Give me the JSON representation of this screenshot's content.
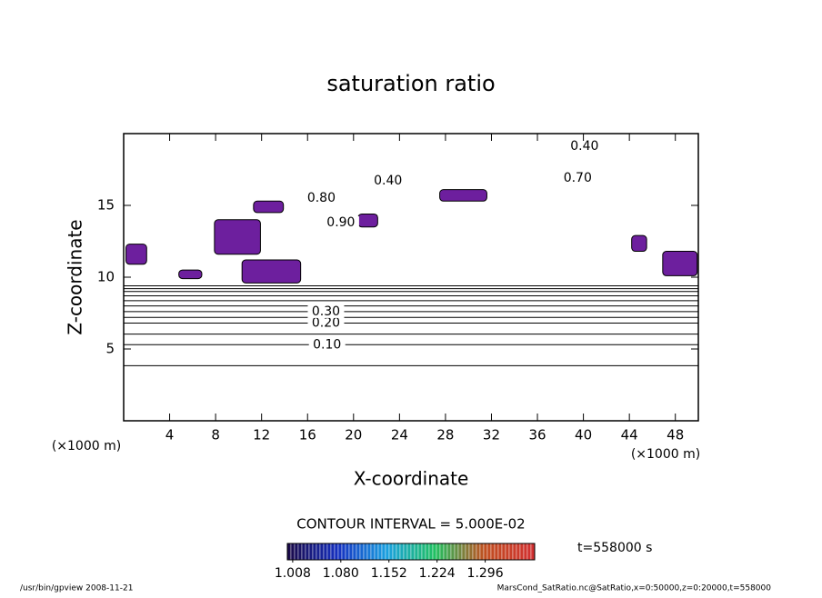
{
  "chart_data": {
    "type": "contour",
    "title": "saturation ratio",
    "x_label": "X-coordinate",
    "y_label": "Z-coordinate",
    "x_unit": "(×1000 m)",
    "y_unit": "(×1000 m)",
    "xlim": [
      0,
      50
    ],
    "xticks": [
      4,
      8,
      12,
      16,
      20,
      24,
      28,
      32,
      36,
      40,
      44,
      48
    ],
    "ylim": [
      0,
      20
    ],
    "yticks": [
      5,
      10,
      15
    ],
    "contour_interval_text": "CONTOUR INTERVAL = 5.000E-02",
    "time_text": "t=558000 s",
    "contour_lines": [
      {
        "level": 0.05,
        "z": 3.84
      },
      {
        "level": 0.1,
        "z": 5.3
      },
      {
        "level": 0.15,
        "z": 6.04
      },
      {
        "level": 0.2,
        "z": 6.8
      },
      {
        "level": 0.25,
        "z": 7.2
      },
      {
        "level": 0.3,
        "z": 7.6
      },
      {
        "level": 0.35,
        "z": 8.0
      },
      {
        "level": 0.4,
        "z": 8.36
      },
      {
        "level": 0.45,
        "z": 8.7
      },
      {
        "level": 0.5,
        "z": 9.0
      },
      {
        "level": 0.55,
        "z": 9.2
      },
      {
        "level": 0.6,
        "z": 9.4
      }
    ],
    "contour_labels": [
      {
        "label": "0.10",
        "x": 17.7,
        "z": 5.3
      },
      {
        "label": "0.20",
        "x": 17.6,
        "z": 6.8
      },
      {
        "label": "0.30",
        "x": 17.6,
        "z": 7.6
      },
      {
        "label": "0.40",
        "x": 40.1,
        "z": 19.1
      },
      {
        "label": "0.70",
        "x": 39.5,
        "z": 16.9
      },
      {
        "label": "0.40",
        "x": 23.0,
        "z": 16.7
      },
      {
        "label": "0.80",
        "x": 17.2,
        "z": 15.5
      },
      {
        "label": "0.90",
        "x": 18.9,
        "z": 13.8
      }
    ],
    "shaded_color": "#6d1f9e",
    "shaded_regions": [
      {
        "x": [
          7.9,
          11.9
        ],
        "z": [
          11.6,
          14.0
        ]
      },
      {
        "x": [
          10.3,
          15.4
        ],
        "z": [
          9.6,
          11.2
        ]
      },
      {
        "x": [
          0.2,
          2.0
        ],
        "z": [
          10.9,
          12.3
        ]
      },
      {
        "x": [
          4.8,
          6.8
        ],
        "z": [
          9.9,
          10.5
        ]
      },
      {
        "x": [
          11.3,
          13.9
        ],
        "z": [
          14.5,
          15.3
        ]
      },
      {
        "x": [
          20.4,
          22.1
        ],
        "z": [
          13.5,
          14.4
        ]
      },
      {
        "x": [
          27.5,
          31.6
        ],
        "z": [
          15.3,
          16.1
        ]
      },
      {
        "x": [
          46.9,
          49.9
        ],
        "z": [
          10.1,
          11.8
        ]
      },
      {
        "x": [
          44.2,
          45.5
        ],
        "z": [
          11.8,
          12.9
        ]
      }
    ],
    "colorbar": {
      "lim": [
        1.0,
        1.37
      ],
      "ticks": [
        {
          "value": 1.008,
          "label": "1.008"
        },
        {
          "value": 1.08,
          "label": "1.080"
        },
        {
          "value": 1.152,
          "label": "1.152"
        },
        {
          "value": 1.224,
          "label": "1.224"
        },
        {
          "value": 1.296,
          "label": "1.296"
        }
      ],
      "colors": [
        "#1a0a4a",
        "#1530c0",
        "#1aa0e0",
        "#20c060",
        "#c05020",
        "#d03030"
      ]
    },
    "footer_left": "/usr/bin/gpview  2008-11-21",
    "footer_right": "MarsCond_SatRatio.nc@SatRatio,x=0:50000,z=0:20000,t=558000"
  }
}
